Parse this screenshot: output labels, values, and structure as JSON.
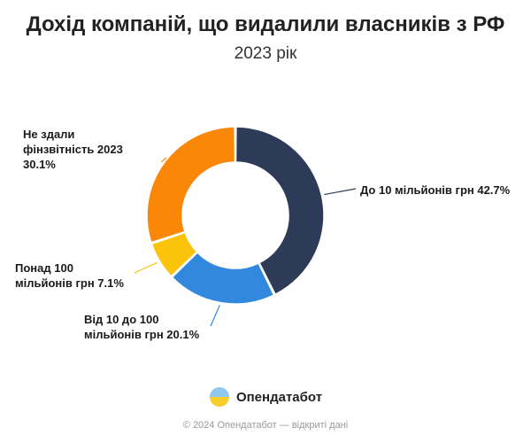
{
  "header": {
    "title": "Дохід компаній, що видалили власників з РФ",
    "subtitle": "2023 рік"
  },
  "chart_data": {
    "type": "pie",
    "variant": "donut",
    "title": "Дохід компаній, що видалили власників з РФ",
    "subtitle": "2023 рік",
    "slices": [
      {
        "label": "До 10 мільйонів грн",
        "value": 42.7,
        "display": "42.7%",
        "color": "#2d3a58"
      },
      {
        "label": "Від 10 до 100 мільйонів грн",
        "value": 20.1,
        "display": "20.1%",
        "color": "#3188dc"
      },
      {
        "label": "Понад 100 мільйонів грн",
        "value": 7.1,
        "display": "7.1%",
        "color": "#fbc40a"
      },
      {
        "label": "Не здали фінзвітність 2023",
        "value": 30.1,
        "display": "30.1%",
        "color": "#fb8708"
      }
    ]
  },
  "labels": {
    "s0": {
      "line1": "До 10 мільйонів грн 42.7%"
    },
    "s1": {
      "line1": "Від 10 до 100",
      "line2": "мільйонів грн 20.1%"
    },
    "s2": {
      "line1": "Понад 100",
      "line2": "мільйонів грн 7.1%"
    },
    "s3": {
      "line1": "Не здали",
      "line2": "фінзвітність 2023",
      "line3": "30.1%"
    }
  },
  "branding": {
    "logo_text": "Опендатабот",
    "footer": "© 2024 Опендатабот — відкриті дані"
  }
}
